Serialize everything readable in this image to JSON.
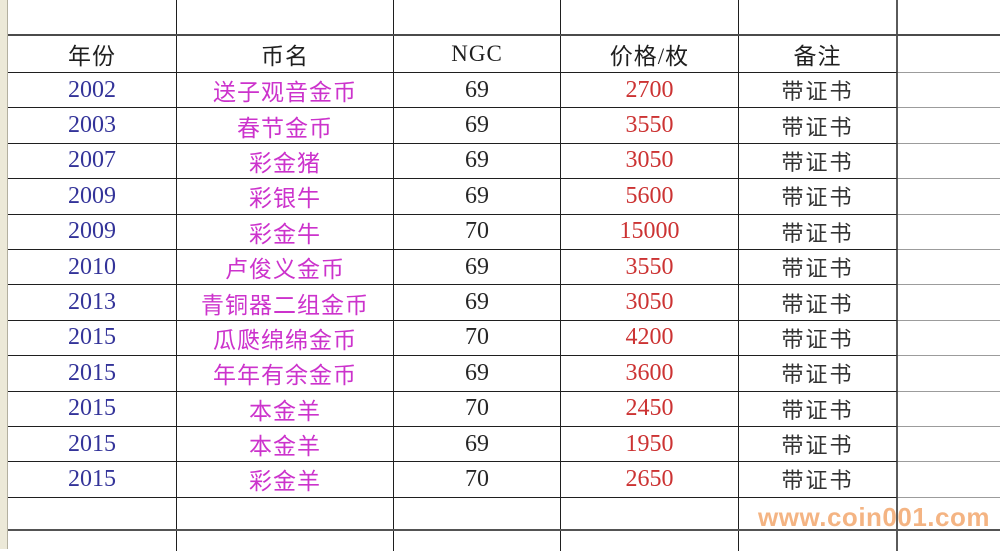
{
  "table": {
    "headers": {
      "year": "年份",
      "name": "币名",
      "grade": "NGC",
      "price": "价格/枚",
      "note": "备注"
    },
    "rows": [
      {
        "year": "2002",
        "name": "送子观音金币",
        "grade": "69",
        "price": "2700",
        "note": "带证书"
      },
      {
        "year": "2003",
        "name": "春节金币",
        "grade": "69",
        "price": "3550",
        "note": "带证书"
      },
      {
        "year": "2007",
        "name": "彩金猪",
        "grade": "69",
        "price": "3050",
        "note": "带证书"
      },
      {
        "year": "2009",
        "name": "彩银牛",
        "grade": "69",
        "price": "5600",
        "note": "带证书"
      },
      {
        "year": "2009",
        "name": "彩金牛",
        "grade": "70",
        "price": "15000",
        "note": "带证书"
      },
      {
        "year": "2010",
        "name": "卢俊义金币",
        "grade": "69",
        "price": "3550",
        "note": "带证书"
      },
      {
        "year": "2013",
        "name": "青铜器二组金币",
        "grade": "69",
        "price": "3050",
        "note": "带证书"
      },
      {
        "year": "2015",
        "name": "瓜瓞绵绵金币",
        "grade": "70",
        "price": "4200",
        "note": "带证书"
      },
      {
        "year": "2015",
        "name": "年年有余金币",
        "grade": "69",
        "price": "3600",
        "note": "带证书"
      },
      {
        "year": "2015",
        "name": "本金羊",
        "grade": "70",
        "price": "2450",
        "note": "带证书"
      },
      {
        "year": "2015",
        "name": "本金羊",
        "grade": "69",
        "price": "1950",
        "note": "带证书"
      },
      {
        "year": "2015",
        "name": "彩金羊",
        "grade": "70",
        "price": "2650",
        "note": "带证书"
      }
    ]
  },
  "watermark": "www.coin001.com",
  "colors": {
    "year": "#333399",
    "name": "#cc33cc",
    "price": "#cc3333",
    "note": "#333333",
    "watermark": "#f4ae79"
  }
}
